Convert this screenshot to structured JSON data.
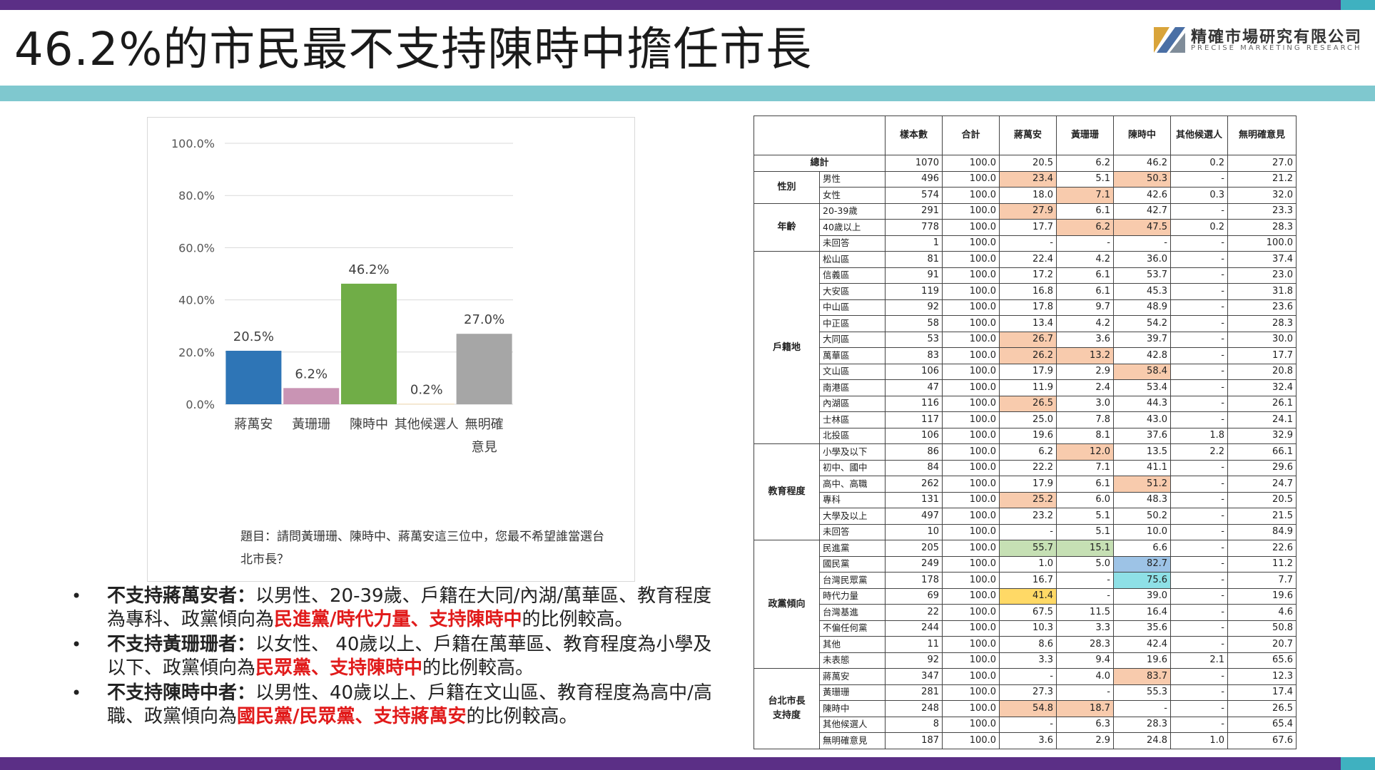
{
  "slide_title": "46.2%的市民最不支持陳時中擔任市長",
  "logo": {
    "name": "精確市場研究有限公司",
    "sub": "PRECISE MARKETING RESEARCH"
  },
  "colors": {
    "topbar": "#5b2f86",
    "accent": "#3fb1c0",
    "band": "#7fc8cf",
    "highlight_text": "#e11b1b"
  },
  "chart_data": {
    "type": "bar",
    "categories": [
      "蔣萬安",
      "黃珊珊",
      "陳時中",
      "其他候選人",
      "無明確\n意見"
    ],
    "values": [
      20.5,
      6.2,
      46.2,
      0.2,
      27.0
    ],
    "value_labels": [
      "20.5%",
      "6.2%",
      "46.2%",
      "0.2%",
      "27.0%"
    ],
    "colors": [
      "#2e75b6",
      "#c994b4",
      "#70ad47",
      "#f4d9b0",
      "#a6a6a6"
    ],
    "ylim": [
      0,
      100
    ],
    "yticks": [
      "0.0%",
      "20.0%",
      "40.0%",
      "60.0%",
      "80.0%",
      "100.0%"
    ],
    "grid": true
  },
  "question": "題目：請問黃珊珊、陳時中、蔣萬安這三位中，您最不希望誰當選台北市長？",
  "bullets": [
    {
      "lead": "不支持蔣萬安者：",
      "text": "以男性、20-39歲、戶籍在大同/內湖/萬華區、教育程度為專科、政黨傾向為",
      "red": "民進黨/時代力量、支持陳時中",
      "tail": "的比例較高。"
    },
    {
      "lead": "不支持黃珊珊者：",
      "text": "以女性、 40歲以上、戶籍在萬華區、教育程度為小學及以下、政黨傾向為",
      "red": "民眾黨、支持陳時中",
      "tail": "的比例較高。"
    },
    {
      "lead": "不支持陳時中者：",
      "text": "以男性、40歲以上、戶籍在文山區、教育程度為高中/高職、政黨傾向為",
      "red": "國民黨/民眾黨、支持蔣萬安",
      "tail": "的比例較高。"
    }
  ],
  "table": {
    "headers": [
      "樣本數",
      "合計",
      "蔣萬安",
      "黃珊珊",
      "陳時中",
      "其他候選人",
      "無明確意見"
    ],
    "total": {
      "label": "總計",
      "values": [
        "1070",
        "100.0",
        "20.5",
        "6.2",
        "46.2",
        "0.2",
        "27.0"
      ]
    },
    "groups": [
      {
        "name": "性別",
        "rows": [
          {
            "label": "男性",
            "values": [
              "496",
              "100.0",
              "23.4",
              "5.1",
              "50.3",
              "-",
              "21.2"
            ],
            "hl": {
              "2": "orange",
              "4": "orange"
            }
          },
          {
            "label": "女性",
            "values": [
              "574",
              "100.0",
              "18.0",
              "7.1",
              "42.6",
              "0.3",
              "32.0"
            ],
            "hl": {
              "3": "orange"
            }
          }
        ]
      },
      {
        "name": "年齡",
        "rows": [
          {
            "label": "20-39歲",
            "values": [
              "291",
              "100.0",
              "27.9",
              "6.1",
              "42.7",
              "-",
              "23.3"
            ],
            "hl": {
              "2": "orange"
            }
          },
          {
            "label": "40歲以上",
            "values": [
              "778",
              "100.0",
              "17.7",
              "6.2",
              "47.5",
              "0.2",
              "28.3"
            ],
            "hl": {
              "3": "orange",
              "4": "orange"
            }
          },
          {
            "label": "未回答",
            "values": [
              "1",
              "100.0",
              "-",
              "-",
              "-",
              "-",
              "100.0"
            ]
          }
        ]
      },
      {
        "name": "戶籍地",
        "rows": [
          {
            "label": "松山區",
            "values": [
              "81",
              "100.0",
              "22.4",
              "4.2",
              "36.0",
              "-",
              "37.4"
            ]
          },
          {
            "label": "信義區",
            "values": [
              "91",
              "100.0",
              "17.2",
              "6.1",
              "53.7",
              "-",
              "23.0"
            ]
          },
          {
            "label": "大安區",
            "values": [
              "119",
              "100.0",
              "16.8",
              "6.1",
              "45.3",
              "-",
              "31.8"
            ]
          },
          {
            "label": "中山區",
            "values": [
              "92",
              "100.0",
              "17.8",
              "9.7",
              "48.9",
              "-",
              "23.6"
            ]
          },
          {
            "label": "中正區",
            "values": [
              "58",
              "100.0",
              "13.4",
              "4.2",
              "54.2",
              "-",
              "28.3"
            ]
          },
          {
            "label": "大同區",
            "values": [
              "53",
              "100.0",
              "26.7",
              "3.6",
              "39.7",
              "-",
              "30.0"
            ],
            "hl": {
              "2": "orange"
            }
          },
          {
            "label": "萬華區",
            "values": [
              "83",
              "100.0",
              "26.2",
              "13.2",
              "42.8",
              "-",
              "17.7"
            ],
            "hl": {
              "2": "orange",
              "3": "orange"
            }
          },
          {
            "label": "文山區",
            "values": [
              "106",
              "100.0",
              "17.9",
              "2.9",
              "58.4",
              "-",
              "20.8"
            ],
            "hl": {
              "4": "orange"
            }
          },
          {
            "label": "南港區",
            "values": [
              "47",
              "100.0",
              "11.9",
              "2.4",
              "53.4",
              "-",
              "32.4"
            ]
          },
          {
            "label": "內湖區",
            "values": [
              "116",
              "100.0",
              "26.5",
              "3.0",
              "44.3",
              "-",
              "26.1"
            ],
            "hl": {
              "2": "orange"
            }
          },
          {
            "label": "士林區",
            "values": [
              "117",
              "100.0",
              "25.0",
              "7.8",
              "43.0",
              "-",
              "24.1"
            ]
          },
          {
            "label": "北投區",
            "values": [
              "106",
              "100.0",
              "19.6",
              "8.1",
              "37.6",
              "1.8",
              "32.9"
            ]
          }
        ]
      },
      {
        "name": "教育程度",
        "rows": [
          {
            "label": "小學及以下",
            "values": [
              "86",
              "100.0",
              "6.2",
              "12.0",
              "13.5",
              "2.2",
              "66.1"
            ],
            "hl": {
              "3": "orange"
            }
          },
          {
            "label": "初中、國中",
            "values": [
              "84",
              "100.0",
              "22.2",
              "7.1",
              "41.1",
              "-",
              "29.6"
            ]
          },
          {
            "label": "高中、高職",
            "values": [
              "262",
              "100.0",
              "17.9",
              "6.1",
              "51.2",
              "-",
              "24.7"
            ],
            "hl": {
              "4": "orange"
            }
          },
          {
            "label": "專科",
            "values": [
              "131",
              "100.0",
              "25.2",
              "6.0",
              "48.3",
              "-",
              "20.5"
            ],
            "hl": {
              "2": "orange"
            }
          },
          {
            "label": "大學及以上",
            "values": [
              "497",
              "100.0",
              "23.2",
              "5.1",
              "50.2",
              "-",
              "21.5"
            ]
          },
          {
            "label": "未回答",
            "values": [
              "10",
              "100.0",
              "-",
              "5.1",
              "10.0",
              "-",
              "84.9"
            ]
          }
        ]
      },
      {
        "name": "政黨傾向",
        "rows": [
          {
            "label": "民進黨",
            "values": [
              "205",
              "100.0",
              "55.7",
              "15.1",
              "6.6",
              "-",
              "22.6"
            ],
            "hl": {
              "2": "green",
              "3": "green"
            }
          },
          {
            "label": "國民黨",
            "values": [
              "249",
              "100.0",
              "1.0",
              "5.0",
              "82.7",
              "-",
              "11.2"
            ],
            "hl": {
              "4": "blue"
            }
          },
          {
            "label": "台灣民眾黨",
            "values": [
              "178",
              "100.0",
              "16.7",
              "-",
              "75.6",
              "-",
              "7.7"
            ],
            "hl": {
              "4": "cyan"
            }
          },
          {
            "label": "時代力量",
            "values": [
              "69",
              "100.0",
              "41.4",
              "-",
              "39.0",
              "-",
              "19.6"
            ],
            "hl": {
              "2": "yellow"
            }
          },
          {
            "label": "台灣基進",
            "values": [
              "22",
              "100.0",
              "67.5",
              "11.5",
              "16.4",
              "-",
              "4.6"
            ]
          },
          {
            "label": "不偏任何黨",
            "values": [
              "244",
              "100.0",
              "10.3",
              "3.3",
              "35.6",
              "-",
              "50.8"
            ]
          },
          {
            "label": "其他",
            "values": [
              "11",
              "100.0",
              "8.6",
              "28.3",
              "42.4",
              "-",
              "20.7"
            ]
          },
          {
            "label": "未表態",
            "values": [
              "92",
              "100.0",
              "3.3",
              "9.4",
              "19.6",
              "2.1",
              "65.6"
            ]
          }
        ]
      },
      {
        "name": "台北市長\n支持度",
        "rows": [
          {
            "label": "蔣萬安",
            "values": [
              "347",
              "100.0",
              "-",
              "4.0",
              "83.7",
              "-",
              "12.3"
            ],
            "hl": {
              "4": "orange"
            }
          },
          {
            "label": "黃珊珊",
            "values": [
              "281",
              "100.0",
              "27.3",
              "-",
              "55.3",
              "-",
              "17.4"
            ]
          },
          {
            "label": "陳時中",
            "values": [
              "248",
              "100.0",
              "54.8",
              "18.7",
              "-",
              "-",
              "26.5"
            ],
            "hl": {
              "2": "orange",
              "3": "orange"
            }
          },
          {
            "label": "其他候選人",
            "values": [
              "8",
              "100.0",
              "-",
              "6.3",
              "28.3",
              "-",
              "65.4"
            ]
          },
          {
            "label": "無明確意見",
            "values": [
              "187",
              "100.0",
              "3.6",
              "2.9",
              "24.8",
              "1.0",
              "67.6"
            ]
          }
        ]
      }
    ]
  }
}
